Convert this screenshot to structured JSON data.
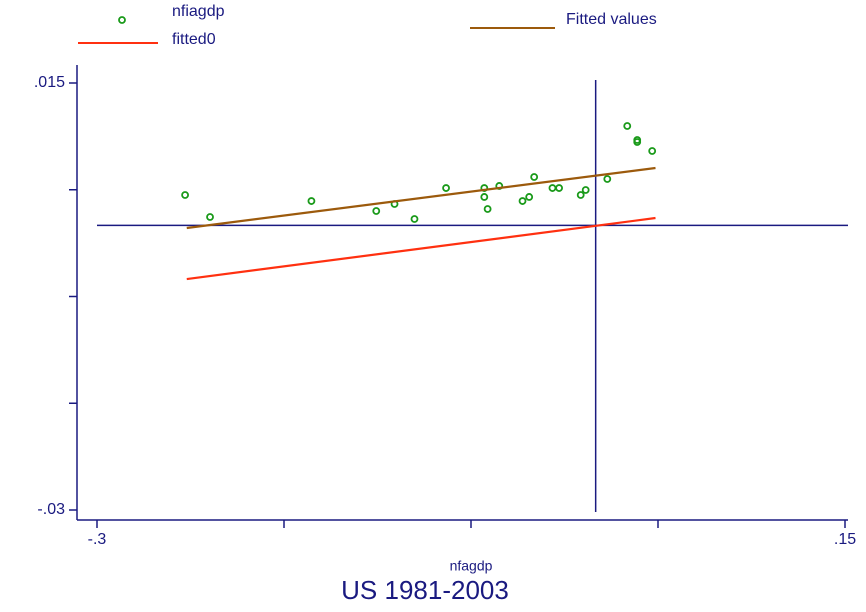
{
  "chart_data": {
    "type": "scatter",
    "title": "US 1981-2003",
    "x_label": "nfagdp",
    "xlim": [
      -0.3,
      0.15
    ],
    "xticks": [
      {
        "value": -0.3,
        "label": "-.3"
      },
      {
        "value": -0.1875,
        "label": null
      },
      {
        "value": -0.075,
        "label": null
      },
      {
        "value": 0.0375,
        "label": null
      },
      {
        "value": 0.15,
        "label": ".15"
      }
    ],
    "ylim": [
      -0.03,
      0.015
    ],
    "yticks": [
      {
        "value": -0.03,
        "label": "-.03"
      },
      {
        "value": -0.01875,
        "label": null
      },
      {
        "value": -0.0075,
        "label": null
      },
      {
        "value": 0.00375,
        "label": null
      },
      {
        "value": 0.015,
        "label": ".015"
      }
    ],
    "xline": 0,
    "yline": 0,
    "axis_color": "#1a1a80",
    "series": [
      {
        "name": "nfiagdp",
        "type": "scatter",
        "color": "#1a9a1a",
        "x": [
          -0.247,
          -0.232,
          -0.171,
          -0.132,
          -0.121,
          -0.109,
          -0.09,
          -0.067,
          -0.067,
          -0.065,
          -0.058,
          -0.044,
          -0.04,
          -0.037,
          -0.026,
          -0.022,
          -0.009,
          -0.006,
          0.007,
          0.019,
          0.025,
          0.025,
          0.034
        ],
        "values": [
          0.0032,
          0.00088,
          0.00256,
          0.00151,
          0.00225,
          0.00067,
          0.00393,
          0.00393,
          0.00299,
          0.00172,
          0.00415,
          0.00256,
          0.00299,
          0.00509,
          0.00393,
          0.00393,
          0.0032,
          0.00372,
          0.00488,
          0.01047,
          0.00899,
          0.00878,
          0.00783
        ]
      },
      {
        "name": "Fitted values",
        "type": "line",
        "color": "#9c5a0c",
        "x": [
          -0.246,
          0.036
        ],
        "values": [
          -0.00028,
          0.00604
        ]
      },
      {
        "name": "fitted0",
        "type": "line",
        "color": "#ff3010",
        "x": [
          -0.246,
          0.036
        ],
        "values": [
          -0.00566,
          0.00077
        ]
      }
    ]
  }
}
